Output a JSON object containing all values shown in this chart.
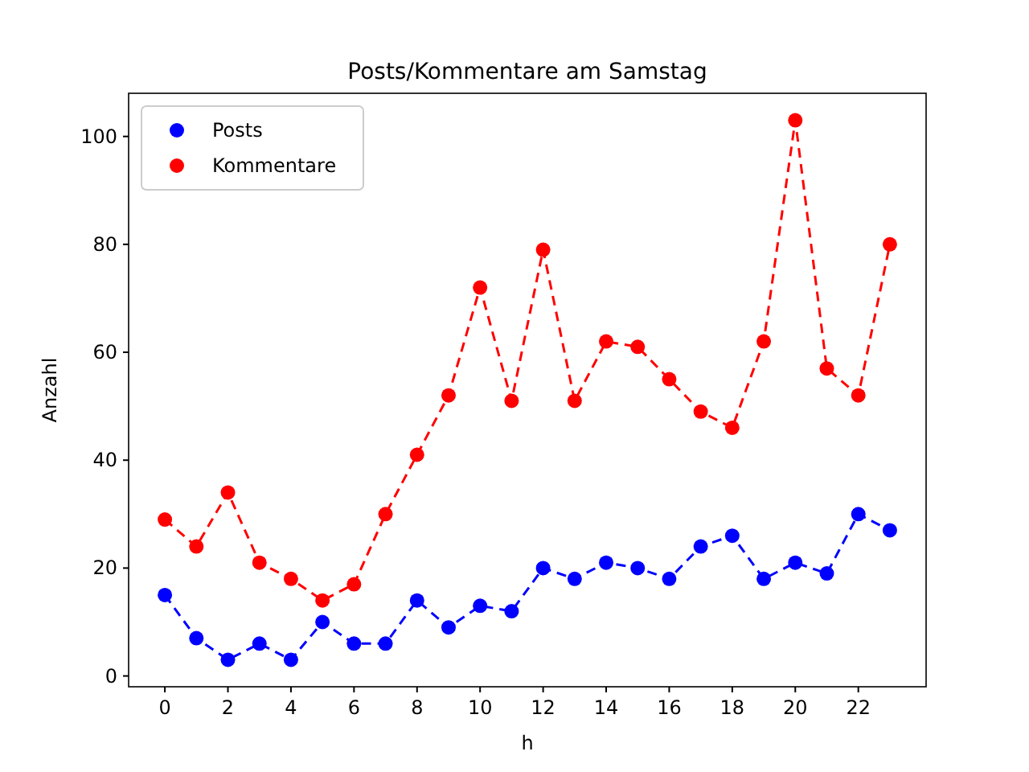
{
  "chart_data": {
    "type": "line",
    "title": "Posts/Kommentare am Samstag",
    "xlabel": "h",
    "ylabel": "Anzahl",
    "x": [
      0,
      1,
      2,
      3,
      4,
      5,
      6,
      7,
      8,
      9,
      10,
      11,
      12,
      13,
      14,
      15,
      16,
      17,
      18,
      19,
      20,
      21,
      22,
      23
    ],
    "series": [
      {
        "name": "Posts",
        "color": "#0000ff",
        "values": [
          15,
          7,
          3,
          6,
          3,
          10,
          6,
          6,
          14,
          9,
          13,
          12,
          20,
          18,
          21,
          20,
          18,
          24,
          26,
          18,
          21,
          19,
          30,
          27
        ]
      },
      {
        "name": "Kommentare",
        "color": "#ff0000",
        "values": [
          29,
          24,
          34,
          21,
          18,
          14,
          17,
          30,
          41,
          52,
          72,
          51,
          79,
          51,
          62,
          61,
          55,
          49,
          46,
          62,
          103,
          57,
          52,
          80
        ]
      }
    ],
    "xlim": [
      -1.15,
      24.15
    ],
    "xticks": [
      0,
      2,
      4,
      6,
      8,
      10,
      12,
      14,
      16,
      18,
      20,
      22
    ],
    "ylim": [
      -2,
      108
    ],
    "yticks": [
      0,
      20,
      40,
      60,
      80,
      100
    ],
    "legend": "top left",
    "marker": "circle",
    "line_style": "dashed",
    "grid": false
  }
}
